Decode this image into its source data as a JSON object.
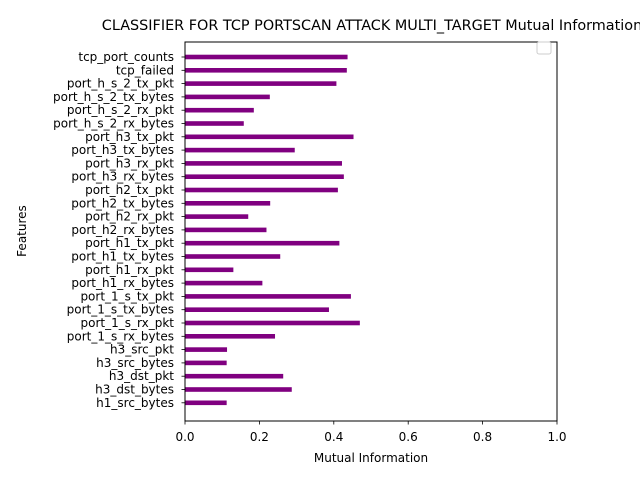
{
  "chart_data": {
    "type": "bar",
    "orientation": "horizontal",
    "title": "CLASSIFIER FOR TCP PORTSCAN ATTACK MULTI_TARGET Mutual Information",
    "xlabel": "Mutual Information",
    "ylabel": "Features",
    "xlim": [
      0,
      1.0
    ],
    "x_ticks": [
      "0.0",
      "0.2",
      "0.4",
      "0.6",
      "0.8",
      "1.0"
    ],
    "x_tick_values": [
      0.0,
      0.2,
      0.4,
      0.6,
      0.8,
      1.0
    ],
    "bar_color": "#800080",
    "legend": "top-right",
    "legend_entries": [
      ""
    ],
    "grid": false,
    "categories": [
      "tcp_port_counts",
      "tcp_failed",
      "port_h_s_2_tx_pkt",
      "port_h_s_2_tx_bytes",
      "port_h_s_2_rx_pkt",
      "port_h_s_2_rx_bytes",
      "port_h3_tx_pkt",
      "port_h3_tx_bytes",
      "port_h3_rx_pkt",
      "port_h3_rx_bytes",
      "port_h2_tx_pkt",
      "port_h2_tx_bytes",
      "port_h2_rx_pkt",
      "port_h2_rx_bytes",
      "port_h1_tx_pkt",
      "port_h1_tx_bytes",
      "port_h1_rx_pkt",
      "port_h1_rx_bytes",
      "port_1_s_tx_pkt",
      "port_1_s_tx_bytes",
      "port_1_s_rx_pkt",
      "port_1_s_rx_bytes",
      "h3_src_pkt",
      "h3_src_bytes",
      "h3_dst_pkt",
      "h3_dst_bytes",
      "h1_src_bytes"
    ],
    "values": [
      0.437,
      0.435,
      0.407,
      0.228,
      0.185,
      0.158,
      0.453,
      0.295,
      0.422,
      0.427,
      0.411,
      0.229,
      0.17,
      0.219,
      0.415,
      0.256,
      0.13,
      0.208,
      0.446,
      0.387,
      0.47,
      0.242,
      0.113,
      0.112,
      0.264,
      0.287,
      0.112
    ]
  }
}
